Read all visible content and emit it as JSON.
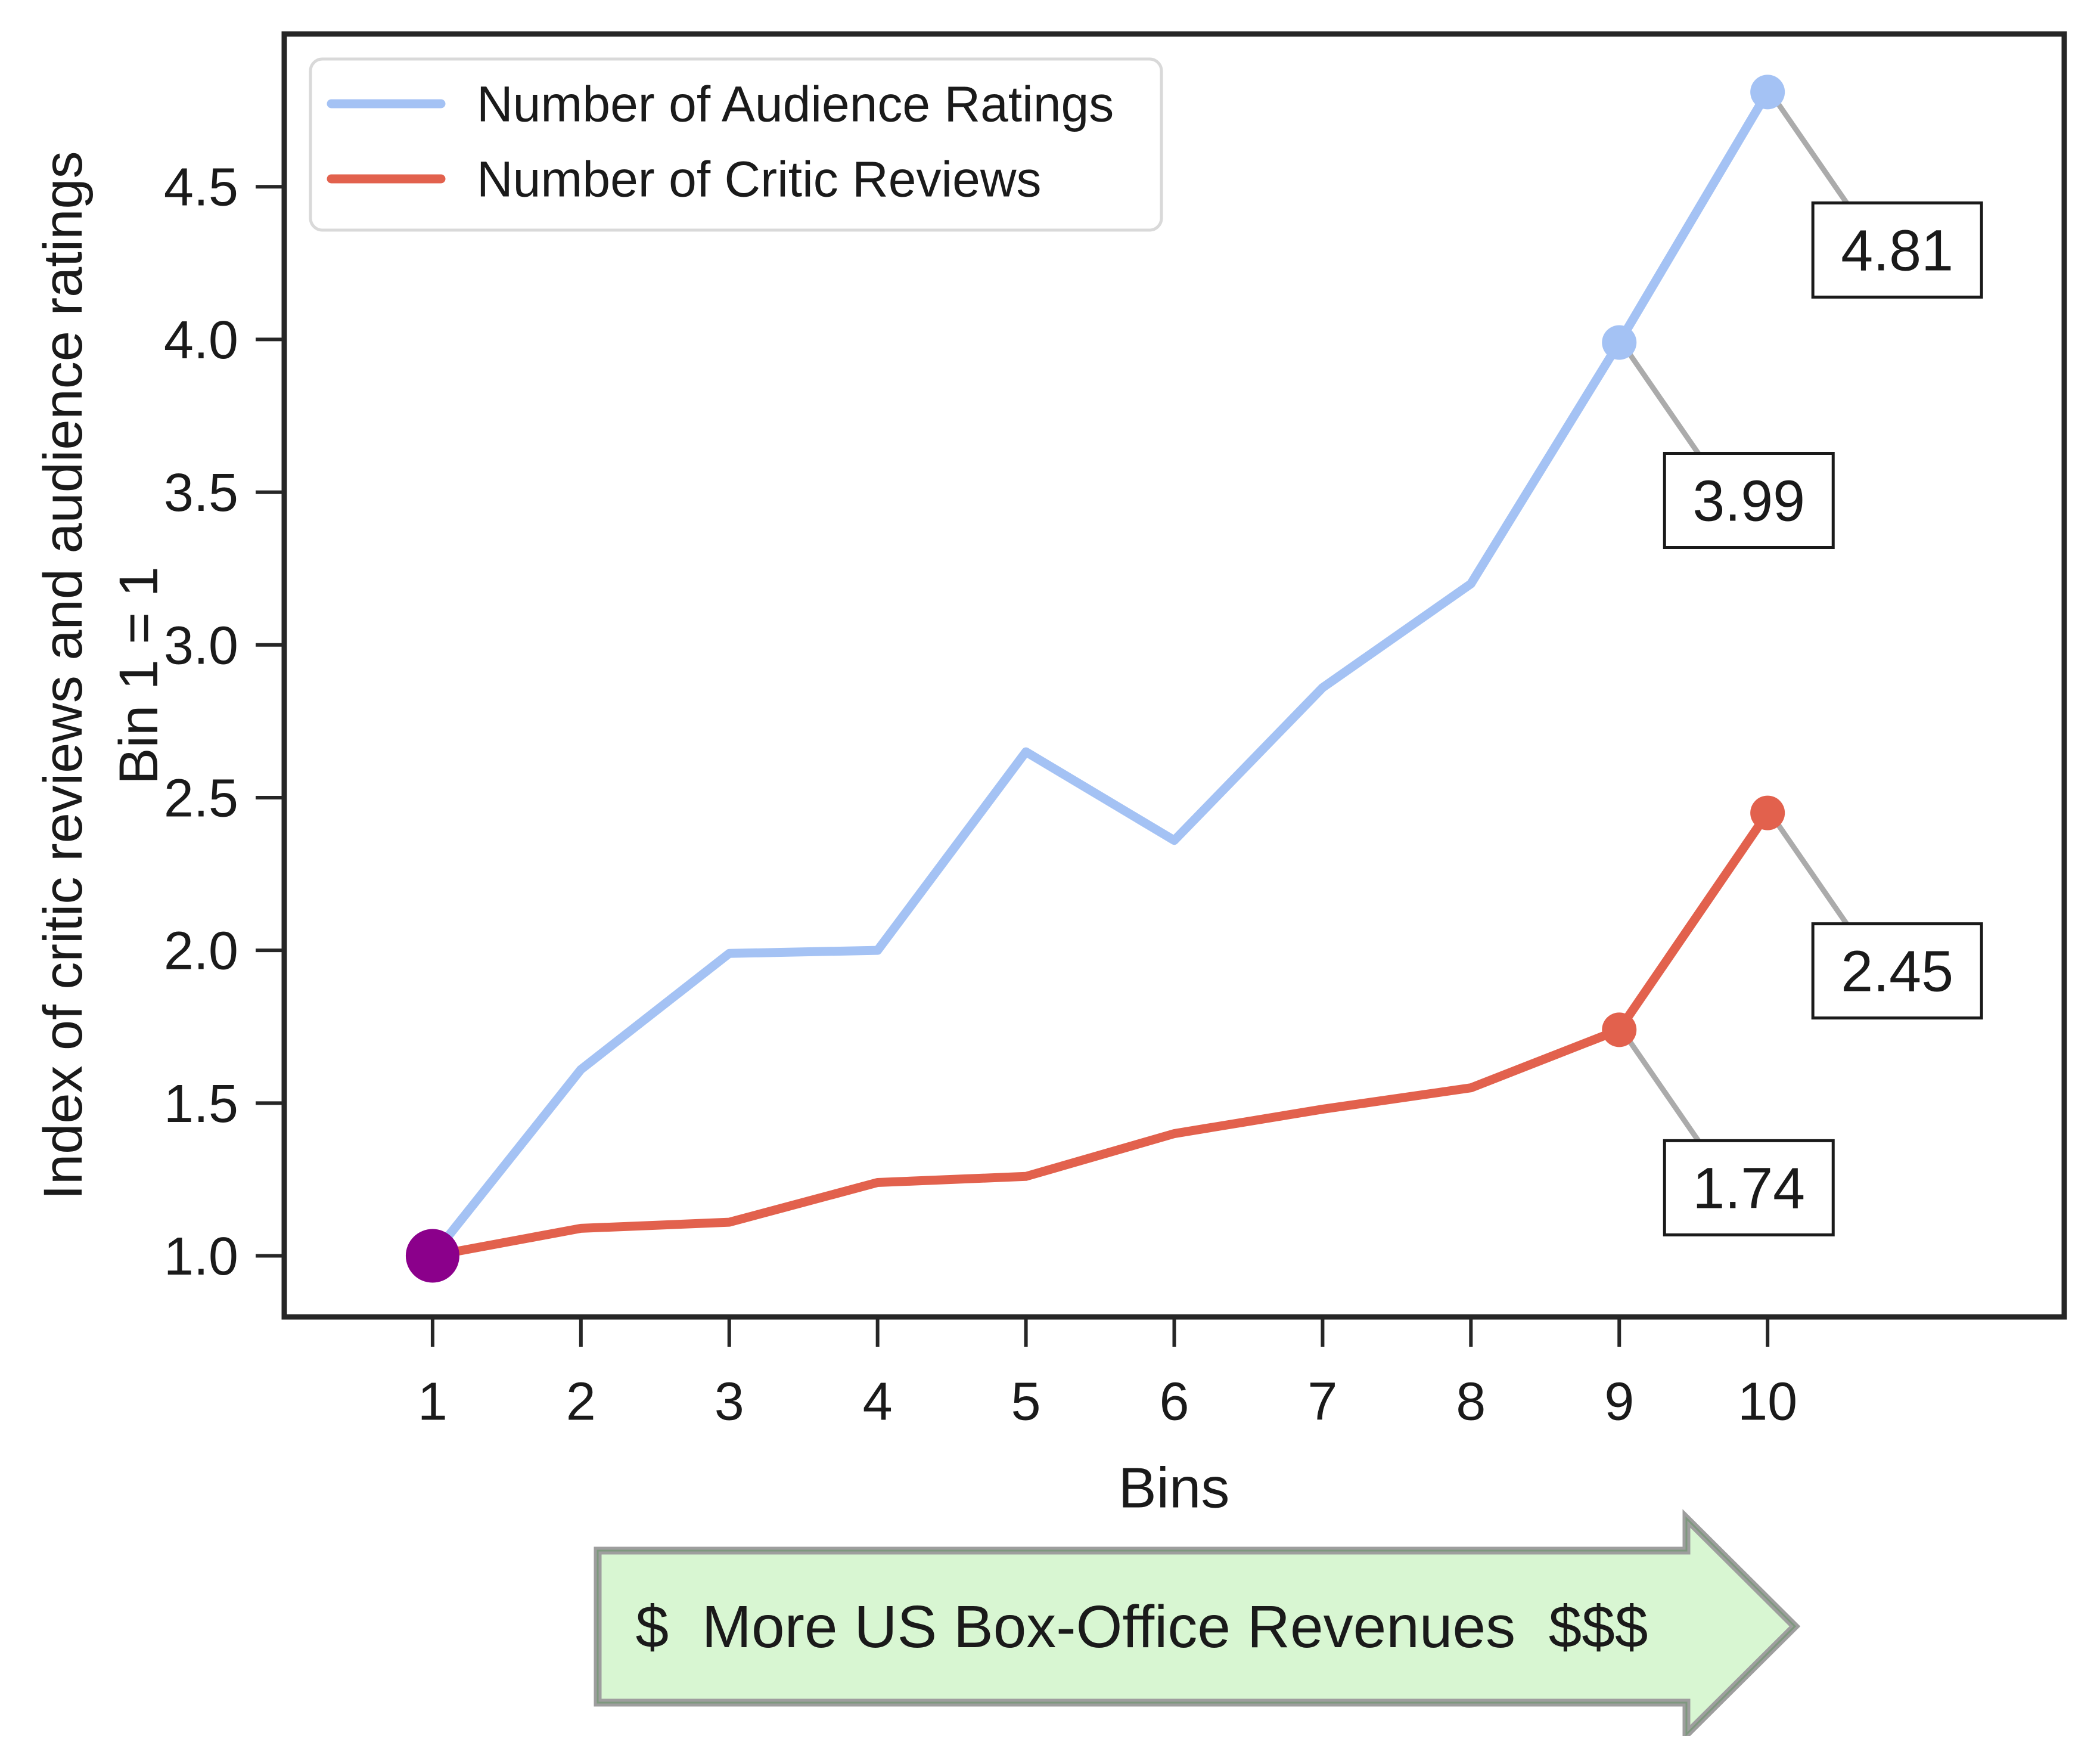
{
  "figure": {
    "background": "#ffffff",
    "spine_color": "#262626",
    "text_color": "#1a1a1a"
  },
  "chart_data": {
    "type": "line",
    "title": "",
    "xlabel": "Bins",
    "ylabel_line1": "Index of critic reviews and audience ratings",
    "ylabel_line2": "Bin 1 = 1",
    "x": [
      1,
      2,
      3,
      4,
      5,
      6,
      7,
      8,
      9,
      10
    ],
    "xticks": [
      1,
      2,
      3,
      4,
      5,
      6,
      7,
      8,
      9,
      10
    ],
    "yticks": [
      1.0,
      1.5,
      2.0,
      2.5,
      3.0,
      3.5,
      4.0,
      4.5
    ],
    "xlim": [
      0,
      12
    ],
    "ylim": [
      0.8,
      5.0
    ],
    "grid": false,
    "legend_position": "upper left",
    "series": [
      {
        "name": "Number of Audience Ratings",
        "color": "#a4c2f4",
        "values": [
          1.0,
          1.61,
          1.99,
          2.0,
          2.65,
          2.36,
          2.86,
          3.2,
          3.99,
          4.81
        ],
        "marked_bins": [
          9,
          10
        ]
      },
      {
        "name": "Number of Critic Reviews",
        "color": "#e2614d",
        "values": [
          1.0,
          1.09,
          1.11,
          1.24,
          1.26,
          1.4,
          1.48,
          1.55,
          1.74,
          2.45
        ],
        "marked_bins": [
          9,
          10
        ]
      }
    ],
    "annotations": [
      {
        "text": "4.81",
        "series": 0,
        "bin": 10
      },
      {
        "text": "3.99",
        "series": 0,
        "bin": 9
      },
      {
        "text": "2.45",
        "series": 1,
        "bin": 10
      },
      {
        "text": "1.74",
        "series": 1,
        "bin": 9
      }
    ],
    "highlight_point": {
      "bin": 1,
      "value": 1.0,
      "color": "#8b008b"
    },
    "leader_color": "#ababab",
    "annotation_box": {
      "fill": "#ffffff",
      "border": "#1a1a1a"
    }
  },
  "legend": {
    "items": [
      "Number of Audience Ratings",
      "Number of Critic Reviews"
    ]
  },
  "arrow_banner": {
    "text": "$  More US Box-Office Revenues  $$$",
    "fill": "#d8f6d2",
    "border": "#9e9e9e",
    "inner_edge": "#7e987e",
    "text_color": "#1a1a1a"
  }
}
